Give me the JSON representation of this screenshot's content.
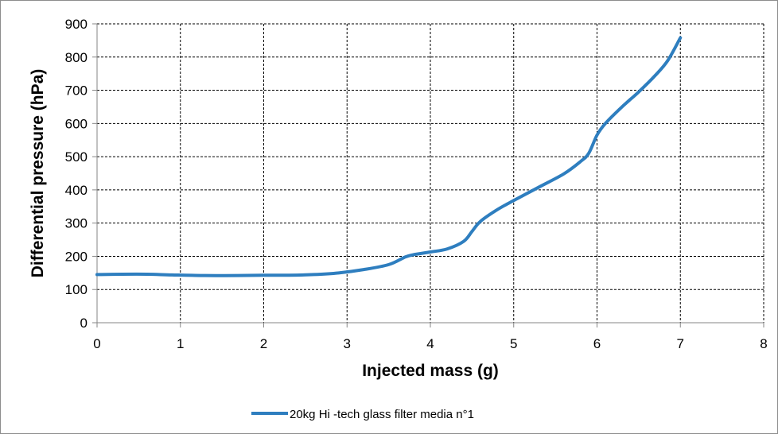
{
  "chart_data": {
    "type": "line",
    "title": "",
    "xlabel": "Injected mass (g)",
    "ylabel": "Differential pressure (hPa)",
    "xlim": [
      0,
      8
    ],
    "ylim": [
      0,
      900
    ],
    "xticks": [
      0,
      1,
      2,
      3,
      4,
      5,
      6,
      7,
      8
    ],
    "yticks": [
      0,
      100,
      200,
      300,
      400,
      500,
      600,
      700,
      800,
      900
    ],
    "grid": true,
    "legend_position": "bottom",
    "series": [
      {
        "name": "20kg Hi -tech glass filter media n°1",
        "color": "#2e7ebf",
        "x": [
          0,
          0.3,
          0.6,
          0.9,
          1.3,
          1.7,
          2.0,
          2.3,
          2.6,
          2.9,
          3.2,
          3.5,
          3.7,
          3.8,
          4.0,
          4.2,
          4.4,
          4.5,
          4.6,
          4.8,
          5.0,
          5.3,
          5.6,
          5.8,
          5.9,
          6.0,
          6.1,
          6.3,
          6.5,
          6.7,
          6.85,
          7.0
        ],
        "y": [
          145,
          146,
          146,
          144,
          142,
          142,
          143,
          143,
          145,
          150,
          160,
          175,
          198,
          205,
          213,
          222,
          245,
          275,
          305,
          340,
          368,
          408,
          448,
          485,
          510,
          565,
          600,
          650,
          695,
          745,
          790,
          858
        ]
      }
    ]
  }
}
